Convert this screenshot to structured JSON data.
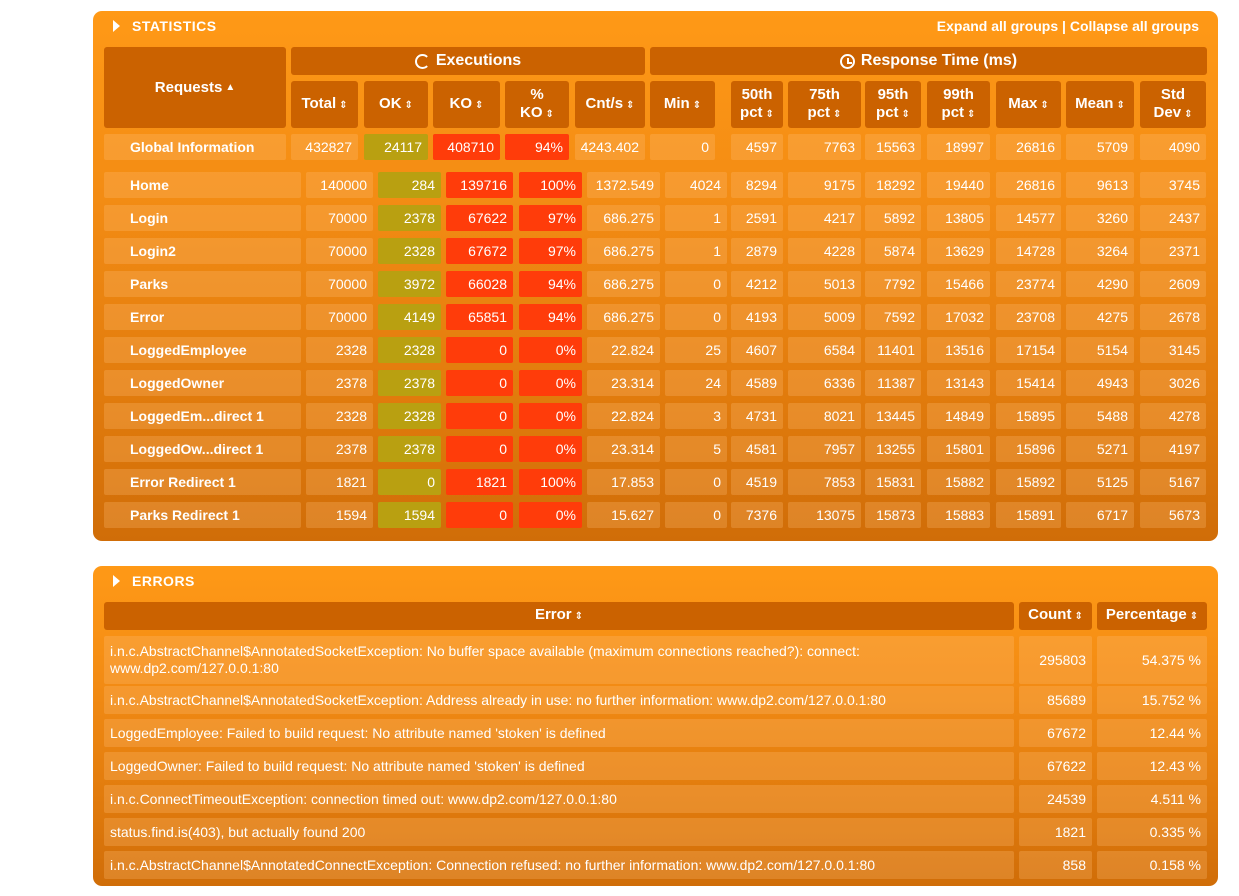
{
  "statistics": {
    "title": "STATISTICS",
    "expand_label": "Expand all groups",
    "separator": " | ",
    "collapse_label": "Collapse all groups",
    "group_executions": "Executions",
    "group_response": "Response Time (ms)",
    "col_requests": "Requests",
    "columns": [
      {
        "label": "Total"
      },
      {
        "label": "OK"
      },
      {
        "label": "KO"
      },
      {
        "label": "%\nKO"
      },
      {
        "label": "Cnt/s"
      },
      {
        "label": "Min"
      },
      {
        "label": "50th\npct"
      },
      {
        "label": "75th\npct"
      },
      {
        "label": "95th\npct"
      },
      {
        "label": "99th\npct"
      },
      {
        "label": "Max"
      },
      {
        "label": "Mean"
      },
      {
        "label": "Std\nDev"
      }
    ],
    "global": {
      "name": "Global Information",
      "values": [
        "432827",
        "24117",
        "408710",
        "94%",
        "4243.402",
        "0",
        "4597",
        "7763",
        "15563",
        "18997",
        "26816",
        "5709",
        "4090"
      ]
    },
    "rows": [
      {
        "name": "Home",
        "values": [
          "140000",
          "284",
          "139716",
          "100%",
          "1372.549",
          "4024",
          "8294",
          "9175",
          "18292",
          "19440",
          "26816",
          "9613",
          "3745"
        ]
      },
      {
        "name": "Login",
        "values": [
          "70000",
          "2378",
          "67622",
          "97%",
          "686.275",
          "1",
          "2591",
          "4217",
          "5892",
          "13805",
          "14577",
          "3260",
          "2437"
        ]
      },
      {
        "name": "Login2",
        "values": [
          "70000",
          "2328",
          "67672",
          "97%",
          "686.275",
          "1",
          "2879",
          "4228",
          "5874",
          "13629",
          "14728",
          "3264",
          "2371"
        ]
      },
      {
        "name": "Parks",
        "values": [
          "70000",
          "3972",
          "66028",
          "94%",
          "686.275",
          "0",
          "4212",
          "5013",
          "7792",
          "15466",
          "23774",
          "4290",
          "2609"
        ]
      },
      {
        "name": "Error",
        "values": [
          "70000",
          "4149",
          "65851",
          "94%",
          "686.275",
          "0",
          "4193",
          "5009",
          "7592",
          "17032",
          "23708",
          "4275",
          "2678"
        ]
      },
      {
        "name": "LoggedEmployee",
        "values": [
          "2328",
          "2328",
          "0",
          "0%",
          "22.824",
          "25",
          "4607",
          "6584",
          "11401",
          "13516",
          "17154",
          "5154",
          "3145"
        ]
      },
      {
        "name": "LoggedOwner",
        "values": [
          "2378",
          "2378",
          "0",
          "0%",
          "23.314",
          "24",
          "4589",
          "6336",
          "11387",
          "13143",
          "15414",
          "4943",
          "3026"
        ]
      },
      {
        "name": "LoggedEm...direct 1",
        "values": [
          "2328",
          "2328",
          "0",
          "0%",
          "22.824",
          "3",
          "4731",
          "8021",
          "13445",
          "14849",
          "15895",
          "5488",
          "4278"
        ]
      },
      {
        "name": "LoggedOw...direct 1",
        "values": [
          "2378",
          "2378",
          "0",
          "0%",
          "23.314",
          "5",
          "4581",
          "7957",
          "13255",
          "15801",
          "15896",
          "5271",
          "4197"
        ]
      },
      {
        "name": "Error Redirect 1",
        "values": [
          "1821",
          "0",
          "1821",
          "100%",
          "17.853",
          "0",
          "4519",
          "7853",
          "15831",
          "15882",
          "15892",
          "5125",
          "5167"
        ]
      },
      {
        "name": "Parks Redirect 1",
        "values": [
          "1594",
          "1594",
          "0",
          "0%",
          "15.627",
          "0",
          "7376",
          "13075",
          "15873",
          "15883",
          "15891",
          "6717",
          "5673"
        ]
      }
    ]
  },
  "errors": {
    "title": "ERRORS",
    "col_error": "Error",
    "col_count": "Count",
    "col_percentage": "Percentage",
    "rows": [
      {
        "error": "i.n.c.AbstractChannel$AnnotatedSocketException: No buffer space available (maximum connections reached?): connect: www.dp2.com/127.0.0.1:80",
        "count": "295803",
        "percentage": "54.375 %"
      },
      {
        "error": "i.n.c.AbstractChannel$AnnotatedSocketException: Address already in use: no further information: www.dp2.com/127.0.0.1:80",
        "count": "85689",
        "percentage": "15.752 %"
      },
      {
        "error": "LoggedEmployee: Failed to build request: No attribute named 'stoken' is defined",
        "count": "67672",
        "percentage": "12.44 %"
      },
      {
        "error": "LoggedOwner: Failed to build request: No attribute named 'stoken' is defined",
        "count": "67622",
        "percentage": "12.43 %"
      },
      {
        "error": "i.n.c.ConnectTimeoutException: connection timed out: www.dp2.com/127.0.0.1:80",
        "count": "24539",
        "percentage": "4.511 %"
      },
      {
        "error": "status.find.is(403), but actually found 200",
        "count": "1821",
        "percentage": "0.335 %"
      },
      {
        "error": "i.n.c.AbstractChannel$AnnotatedConnectException: Connection refused: no further information: www.dp2.com/127.0.0.1:80",
        "count": "858",
        "percentage": "0.158 %"
      }
    ]
  }
}
